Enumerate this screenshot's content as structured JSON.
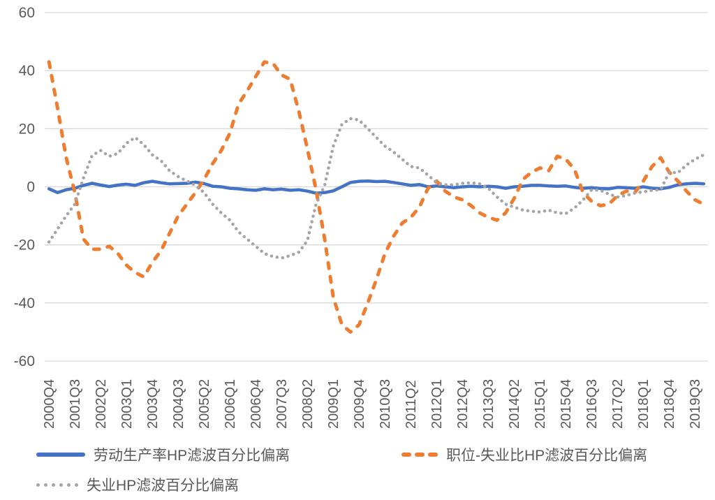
{
  "axis": {
    "text_color": "#595959",
    "grid_color": "#D9D9D9",
    "background": "#ffffff"
  },
  "chart_data": {
    "type": "line",
    "title": "",
    "xlabel": "",
    "ylabel": "",
    "ylim": [
      -60,
      60
    ],
    "yticks": [
      60,
      40,
      20,
      0,
      -20,
      -40,
      -60
    ],
    "grid": "horizontal",
    "legend_position": "bottom",
    "x_tick_label_every": 3,
    "x_tick_rotation": -90,
    "categories": [
      "2000Q4",
      "2001Q1",
      "2001Q2",
      "2001Q3",
      "2001Q4",
      "2002Q1",
      "2002Q2",
      "2002Q3",
      "2002Q4",
      "2003Q1",
      "2003Q2",
      "2003Q3",
      "2003Q4",
      "2004Q1",
      "2004Q2",
      "2004Q3",
      "2004Q4",
      "2005Q1",
      "2005Q2",
      "2005Q3",
      "2005Q4",
      "2006Q1",
      "2006Q2",
      "2006Q3",
      "2006Q4",
      "2007Q1",
      "2007Q2",
      "2007Q3",
      "2007Q4",
      "2008Q1",
      "2008Q2",
      "2008Q3",
      "2008Q4",
      "2009Q1",
      "2009Q2",
      "2009Q3",
      "2009Q4",
      "2010Q1",
      "2010Q2",
      "2010Q3",
      "2010Q4",
      "2011Q1",
      "2011Q2",
      "2011Q3",
      "2011Q4",
      "2012Q1",
      "2012Q2",
      "2012Q3",
      "2012Q4",
      "2013Q1",
      "2013Q2",
      "2013Q3",
      "2013Q4",
      "2014Q1",
      "2014Q2",
      "2014Q3",
      "2014Q4",
      "2015Q1",
      "2015Q2",
      "2015Q3",
      "2015Q4",
      "2016Q1",
      "2016Q2",
      "2016Q3",
      "2016Q4",
      "2017Q1",
      "2017Q2",
      "2017Q3",
      "2017Q4",
      "2018Q1",
      "2018Q2",
      "2018Q3",
      "2018Q4",
      "2019Q1",
      "2019Q2",
      "2019Q3",
      "2019Q4"
    ],
    "series": [
      {
        "name": "劳动生产率HP滤波百分比偏离",
        "color": "#4472C4",
        "style": "solid",
        "values": [
          -0.7,
          -2,
          -1,
          -0.5,
          0.5,
          1.2,
          0.6,
          0.1,
          0.6,
          0.9,
          0.5,
          1.4,
          1.9,
          1.4,
          1.0,
          1.1,
          1.2,
          1.6,
          1.1,
          0.2,
          0.0,
          -0.5,
          -0.7,
          -1.0,
          -1.2,
          -0.7,
          -1.0,
          -0.8,
          -1.2,
          -1.0,
          -1.5,
          -2.2,
          -2.0,
          -1.4,
          0.0,
          1.5,
          1.9,
          2.0,
          1.8,
          1.9,
          1.5,
          1.0,
          0.5,
          0.8,
          0.0,
          0.3,
          0.0,
          -0.3,
          0.0,
          0.2,
          0.0,
          0.2,
          0.0,
          -0.5,
          0.0,
          0.2,
          0.5,
          0.5,
          0.3,
          0.2,
          0.3,
          -0.2,
          -0.5,
          -0.3,
          -0.6,
          -0.7,
          -0.2,
          -0.3,
          -0.5,
          0.0,
          -0.5,
          -0.7,
          -0.2,
          0.7,
          1.0,
          1.2,
          1.0
        ]
      },
      {
        "name": "职位-失业比HP滤波百分比偏离",
        "color": "#ED7D31",
        "style": "dashed",
        "values": [
          43,
          27,
          10,
          -2,
          -18,
          -21.5,
          -21.5,
          -20.5,
          -23,
          -27,
          -29.5,
          -31,
          -26,
          -22,
          -16,
          -10,
          -6,
          -2,
          2.5,
          8,
          12.5,
          18.5,
          28.5,
          33,
          38,
          43,
          42.5,
          38.5,
          37,
          26,
          13,
          -1,
          -18,
          -38,
          -47.5,
          -50,
          -47.5,
          -40,
          -32,
          -23,
          -17,
          -12.5,
          -10.5,
          -7,
          -0.5,
          2,
          -1.5,
          -3.5,
          -4.5,
          -6.5,
          -9,
          -10.5,
          -11.5,
          -9,
          -4,
          2.5,
          5,
          6.5,
          5.5,
          10.5,
          9.5,
          6,
          -2,
          -5,
          -6.5,
          -6,
          -3,
          -1.5,
          -2,
          2,
          7,
          10,
          5,
          2,
          -1.5,
          -4.5,
          -6
        ]
      },
      {
        "name": "失业HP滤波百分比偏离",
        "color": "#A5A5A5",
        "style": "dotted",
        "values": [
          -19,
          -14.5,
          -10,
          -6,
          3,
          10.8,
          12.5,
          10.5,
          11.5,
          15,
          17,
          14.5,
          11,
          9,
          5.5,
          3.5,
          2,
          0.5,
          -2,
          -6,
          -9,
          -11.5,
          -15.5,
          -18,
          -20.5,
          -23,
          -24,
          -24.5,
          -23.7,
          -22.5,
          -18.5,
          -6,
          0.5,
          14,
          21.5,
          23.5,
          23,
          20,
          17,
          14,
          12,
          9.5,
          7,
          6.5,
          4,
          1.5,
          0.7,
          0.7,
          1.2,
          1.4,
          1,
          -0.5,
          -3.5,
          -6,
          -7,
          -8,
          -8.4,
          -8.7,
          -8,
          -9,
          -9.2,
          -7.3,
          -4.5,
          -1,
          -1.2,
          -2.5,
          -3.5,
          -3,
          -2.2,
          -1.7,
          -1.2,
          -1,
          5,
          4.8,
          7.5,
          9.5,
          11
        ]
      }
    ]
  },
  "legend": {
    "item1": "劳动生产率HP滤波百分比偏离",
    "item2": "职位-失业比HP滤波百分比偏离",
    "item3": "失业HP滤波百分比偏离"
  }
}
